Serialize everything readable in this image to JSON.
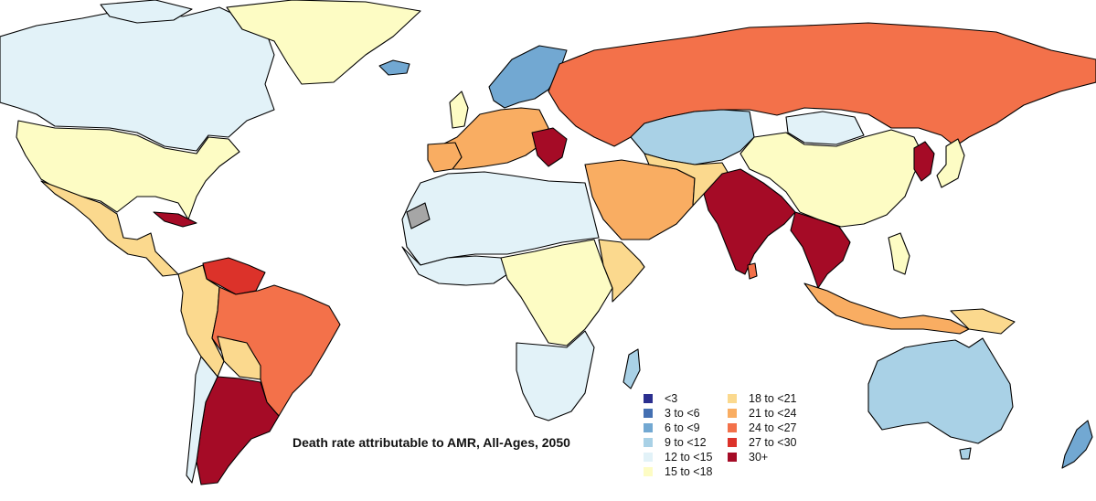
{
  "map": {
    "title": "Death rate attributable to AMR, All-Ages, 2050"
  },
  "legend": {
    "items": [
      {
        "label": "<3",
        "color": "#2b2f8f"
      },
      {
        "label": "3 to <6",
        "color": "#4470b2"
      },
      {
        "label": "6 to <9",
        "color": "#72a8d2"
      },
      {
        "label": "9 to <12",
        "color": "#a9d1e6"
      },
      {
        "label": "12 to <15",
        "color": "#e2f2f8"
      },
      {
        "label": "15 to <18",
        "color": "#fdfcc4"
      },
      {
        "label": "18 to <21",
        "color": "#fbd98e"
      },
      {
        "label": "21 to <24",
        "color": "#f9ad62"
      },
      {
        "label": "24 to <27",
        "color": "#f3714a"
      },
      {
        "label": "27 to <30",
        "color": "#dc322a"
      },
      {
        "label": "30+",
        "color": "#a50b26"
      }
    ]
  },
  "colors": {
    "no_data": "#a6a6a6",
    "water": "#ffffff"
  },
  "regions": [
    {
      "name": "canada",
      "bin": "12 to <15"
    },
    {
      "name": "greenland",
      "bin": "15 to <18"
    },
    {
      "name": "usa",
      "bin": "15 to <18"
    },
    {
      "name": "mexico",
      "bin": "18 to <21"
    },
    {
      "name": "cuba",
      "bin": "30+"
    },
    {
      "name": "venezuela",
      "bin": "27 to <30"
    },
    {
      "name": "brazil",
      "bin": "24 to <27"
    },
    {
      "name": "argentina",
      "bin": "30+"
    },
    {
      "name": "russia",
      "bin": "24 to <27"
    },
    {
      "name": "kazakhstan",
      "bin": "9 to <12"
    },
    {
      "name": "china",
      "bin": "15 to <18"
    },
    {
      "name": "india",
      "bin": "30+"
    },
    {
      "name": "australia",
      "bin": "9 to <12"
    },
    {
      "name": "norway-sweden",
      "bin": "6 to <9"
    },
    {
      "name": "iceland",
      "bin": "6 to <9"
    },
    {
      "name": "new-zealand",
      "bin": "6 to <9"
    },
    {
      "name": "korea",
      "bin": "30+"
    },
    {
      "name": "indochina",
      "bin": "30+"
    },
    {
      "name": "western-sahara",
      "bin": "no data"
    }
  ]
}
